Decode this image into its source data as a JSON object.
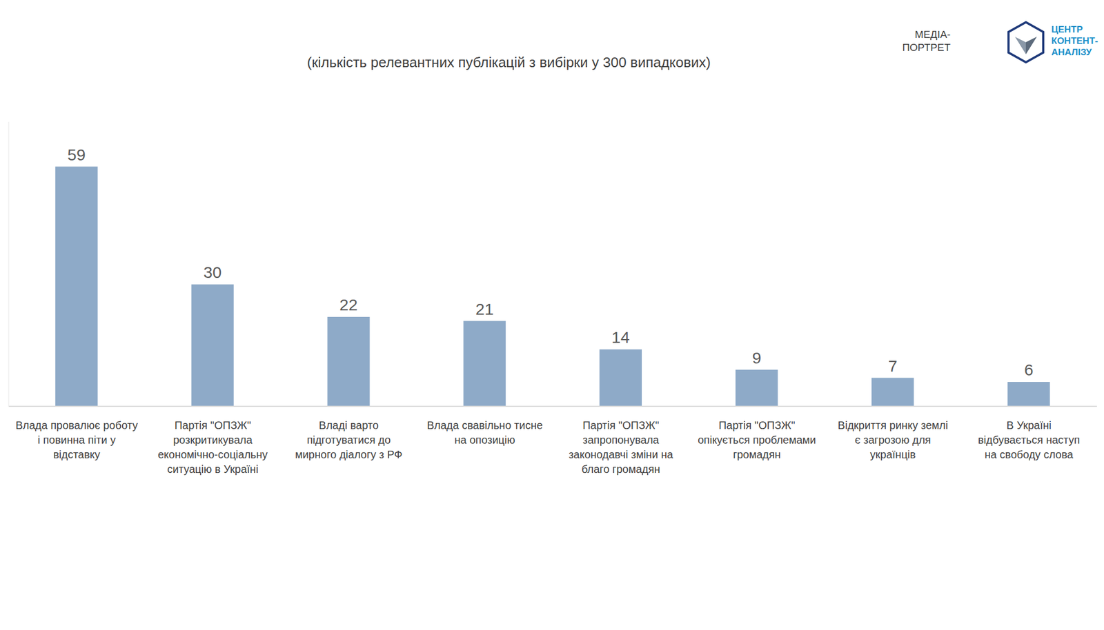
{
  "chart_data": {
    "type": "bar",
    "subtitle": "(кількість релевантних публікацій з вибірки у 300 випадкових)",
    "annotations": [
      "МЕДІА-ПОРТРЕТ",
      "ЦЕНТР КОНТЕНТ-АНАЛІЗУ"
    ],
    "categories": [
      "Влада провалює роботу і повинна піти у відставку",
      "Партія \"ОПЗЖ\" розкритикувала економічно-соціальну ситуацію в Україні",
      "Владі варто підготуватися до мирного діалогу з РФ",
      "Влада свавільно тисне на опозицію",
      "Партія \"ОПЗЖ\" запропонувала законодавчі зміни на благо громадян",
      "Партія \"ОПЗЖ\" опікується проблемами громадян",
      "Відкриття ринку землі є загрозою для українців",
      "В Україні відбувається наступ на свободу слова"
    ],
    "values": [
      59,
      30,
      22,
      21,
      14,
      9,
      7,
      6
    ],
    "color": "#8eaac8",
    "ylim": [
      0,
      70
    ],
    "grid": false,
    "data_labels": true,
    "tick_labels": "x"
  }
}
